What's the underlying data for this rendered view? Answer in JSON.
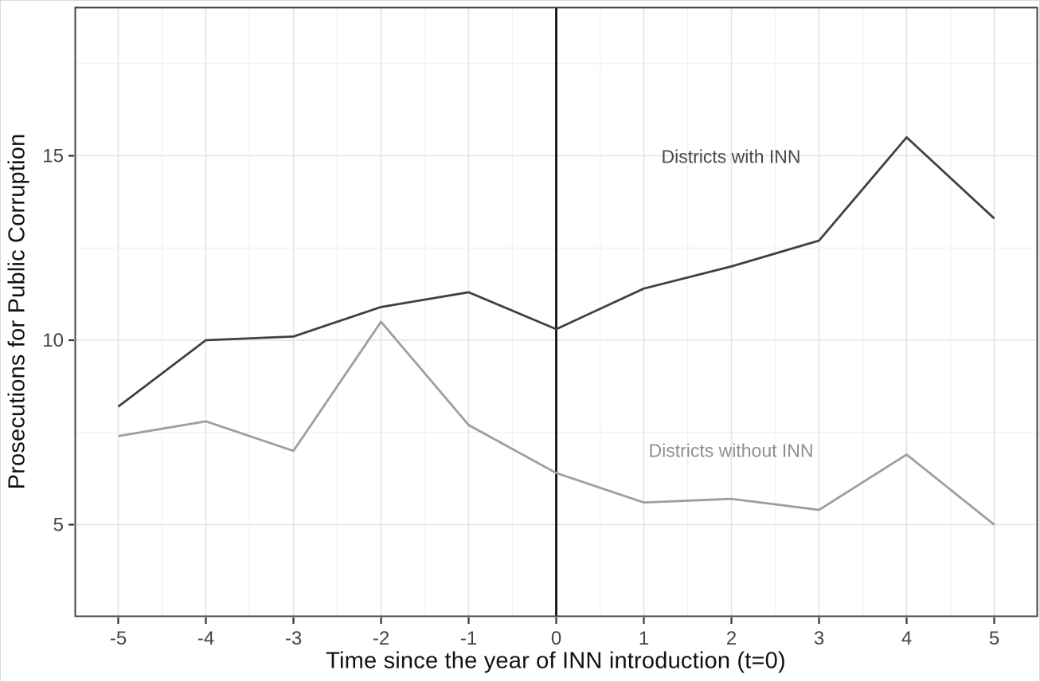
{
  "accent_colors": {
    "series_dark": "#404040",
    "series_gray": "#9e9e9e",
    "reference_line": "#000000",
    "panel_border": "#454545",
    "grid_major": "#e4e4e4",
    "grid_minor": "#f1f1f1",
    "tick_label": "#454545",
    "axis_title": "#111111",
    "annotation_dark": "#4a4a4a",
    "annotation_gray": "#8f8f8f"
  },
  "chart_data": {
    "type": "line",
    "title": "",
    "xlabel": "Time since the year of INN introduction (t=0)",
    "ylabel": "Prosecutions for Public Corruption",
    "x": [
      -5,
      -4,
      -3,
      -2,
      -1,
      0,
      1,
      2,
      3,
      4,
      5
    ],
    "series": [
      {
        "name": "Districts with INN",
        "color": "#404040",
        "values": [
          8.2,
          10.0,
          10.1,
          10.9,
          11.3,
          10.3,
          11.4,
          12.0,
          12.7,
          15.5,
          13.3
        ]
      },
      {
        "name": "Districts without INN",
        "color": "#9e9e9e",
        "values": [
          7.4,
          7.8,
          7.0,
          10.5,
          7.7,
          6.4,
          5.6,
          5.7,
          5.4,
          6.9,
          5.0
        ]
      }
    ],
    "xticks": [
      -5,
      -4,
      -3,
      -2,
      -1,
      0,
      1,
      2,
      3,
      4,
      5
    ],
    "yticks": [
      5,
      10,
      15
    ],
    "xlim": [
      -5.5,
      5.5
    ],
    "ylim": [
      2.5,
      19.0
    ],
    "grid": true,
    "legend_position": "none",
    "reference_line_x": 0,
    "annotations": [
      {
        "text": "Districts with INN",
        "x": 2,
        "y": 15.0,
        "color": "#4a4a4a"
      },
      {
        "text": "Districts without INN",
        "x": 2,
        "y": 7.0,
        "color": "#8f8f8f"
      }
    ]
  }
}
